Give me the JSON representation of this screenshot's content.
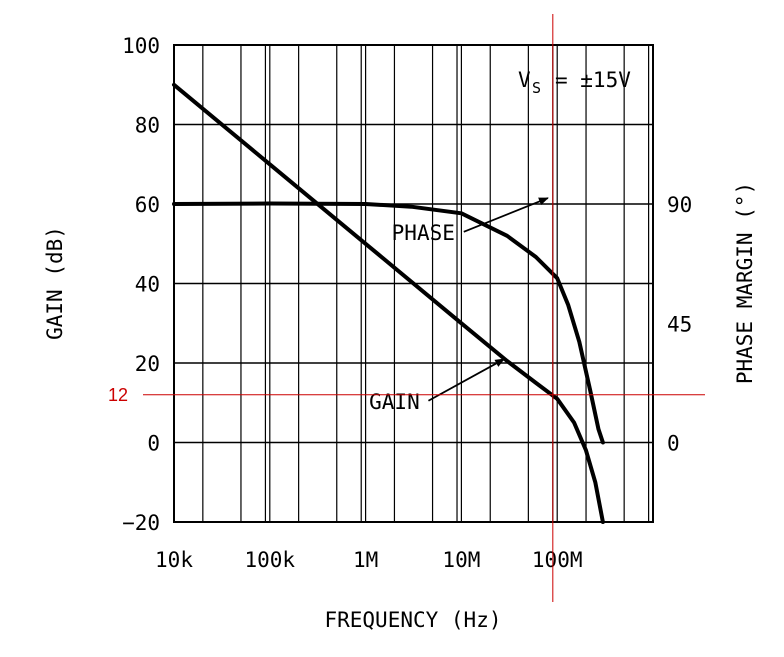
{
  "chart_data": {
    "type": "line",
    "title": "",
    "xlabel": "FREQUENCY (Hz)",
    "ylabel": "GAIN (dB)",
    "y2label": "PHASE MARGIN (°)",
    "x_scale": "log",
    "xlim": [
      10000,
      1000000000
    ],
    "ylim": [
      -20,
      100
    ],
    "y2lim": [
      -30,
      150
    ],
    "grid": true,
    "x_ticks": [
      {
        "value": 10000,
        "label": "10k"
      },
      {
        "value": 100000,
        "label": "100k"
      },
      {
        "value": 1000000,
        "label": "1M"
      },
      {
        "value": 10000000,
        "label": "10M"
      },
      {
        "value": 100000000,
        "label": "100M"
      }
    ],
    "y_ticks": [
      {
        "value": 100,
        "label": "100"
      },
      {
        "value": 80,
        "label": "80"
      },
      {
        "value": 60,
        "label": "60"
      },
      {
        "value": 40,
        "label": "40"
      },
      {
        "value": 20,
        "label": "20"
      },
      {
        "value": 0,
        "label": "0"
      },
      {
        "value": -20,
        "label": "−20"
      }
    ],
    "y2_ticks": [
      {
        "value": 90,
        "label": "90"
      },
      {
        "value": 45,
        "label": "45"
      },
      {
        "value": 0,
        "label": "0"
      }
    ],
    "series": [
      {
        "name": "GAIN",
        "axis": "left",
        "x": [
          10000,
          100000,
          1000000,
          10000000,
          30000000,
          60000000,
          100000000,
          150000000,
          200000000,
          250000000,
          300000000
        ],
        "y": [
          90,
          70,
          50,
          30,
          20.5,
          15,
          11,
          5,
          -2,
          -10,
          -20
        ]
      },
      {
        "name": "PHASE",
        "axis": "right",
        "x": [
          10000,
          100000,
          1000000,
          3000000,
          10000000,
          30000000,
          60000000,
          100000000,
          130000000,
          170000000,
          220000000,
          270000000,
          300000000
        ],
        "y": [
          90,
          90.2,
          90,
          89,
          86.5,
          78,
          70,
          62,
          52,
          38,
          20,
          5,
          0
        ]
      }
    ],
    "annotations": [
      {
        "text": "PHASE",
        "x": 4000000,
        "y": 53,
        "arrow_to": {
          "x": 80000000,
          "y": 61.5
        }
      },
      {
        "text": "GAIN",
        "x": 2000000,
        "y": 10.5,
        "arrow_to": {
          "x": 28000000,
          "y": 21
        }
      }
    ],
    "supply_label": {
      "main": "V",
      "sub": "S",
      "rest": "= ±15V"
    },
    "reference_lines": [
      {
        "orientation": "vertical",
        "x": 90000000,
        "color": "#cc0000"
      },
      {
        "orientation": "horizontal",
        "y": 12,
        "color": "#cc0000",
        "label": "12"
      }
    ]
  }
}
